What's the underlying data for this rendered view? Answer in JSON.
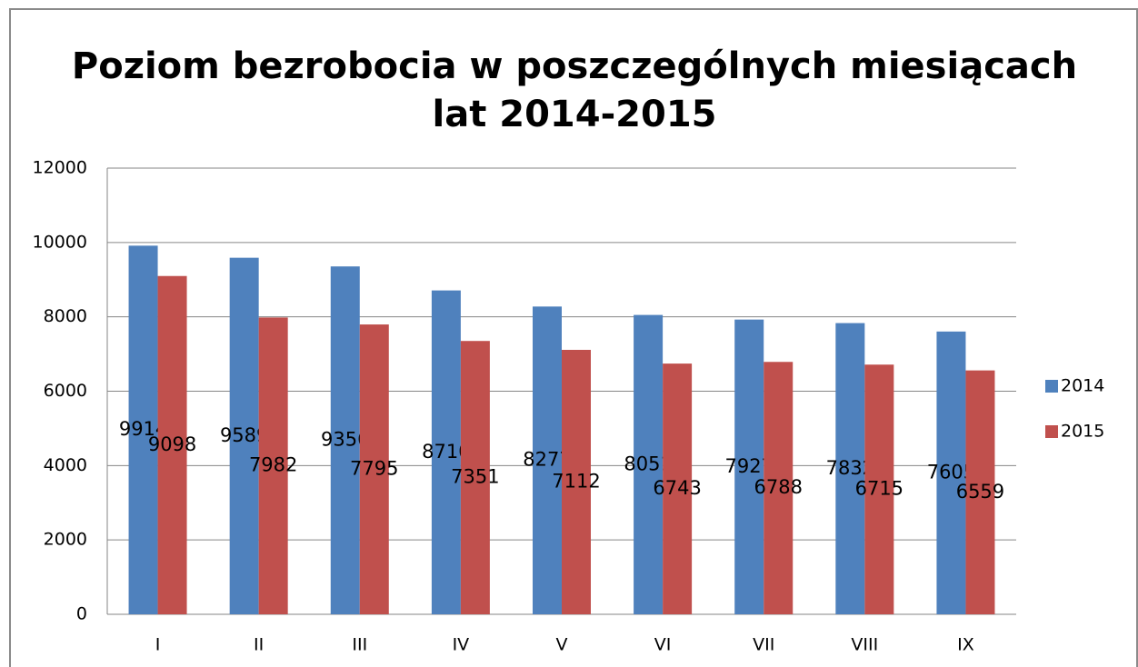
{
  "chart_data": {
    "type": "bar",
    "title": [
      "Poziom bezrobocia w poszczególnych miesiącach",
      "lat 2014-2015"
    ],
    "categories": [
      "I",
      "II",
      "III",
      "IV",
      "V",
      "VI",
      "VII",
      "VIII",
      "IX"
    ],
    "series": [
      {
        "name": "2014",
        "color": "#4f81bd",
        "values": [
          9914,
          9589,
          9356,
          8710,
          8277,
          8051,
          7927,
          7832,
          7605
        ]
      },
      {
        "name": "2015",
        "color": "#c0504d",
        "values": [
          9098,
          7982,
          7795,
          7351,
          7112,
          6743,
          6788,
          6715,
          6559
        ]
      }
    ],
    "ylim": [
      0,
      12000
    ],
    "yticks": [
      0,
      2000,
      4000,
      6000,
      8000,
      10000,
      12000
    ],
    "grid": true,
    "legend": "right"
  }
}
